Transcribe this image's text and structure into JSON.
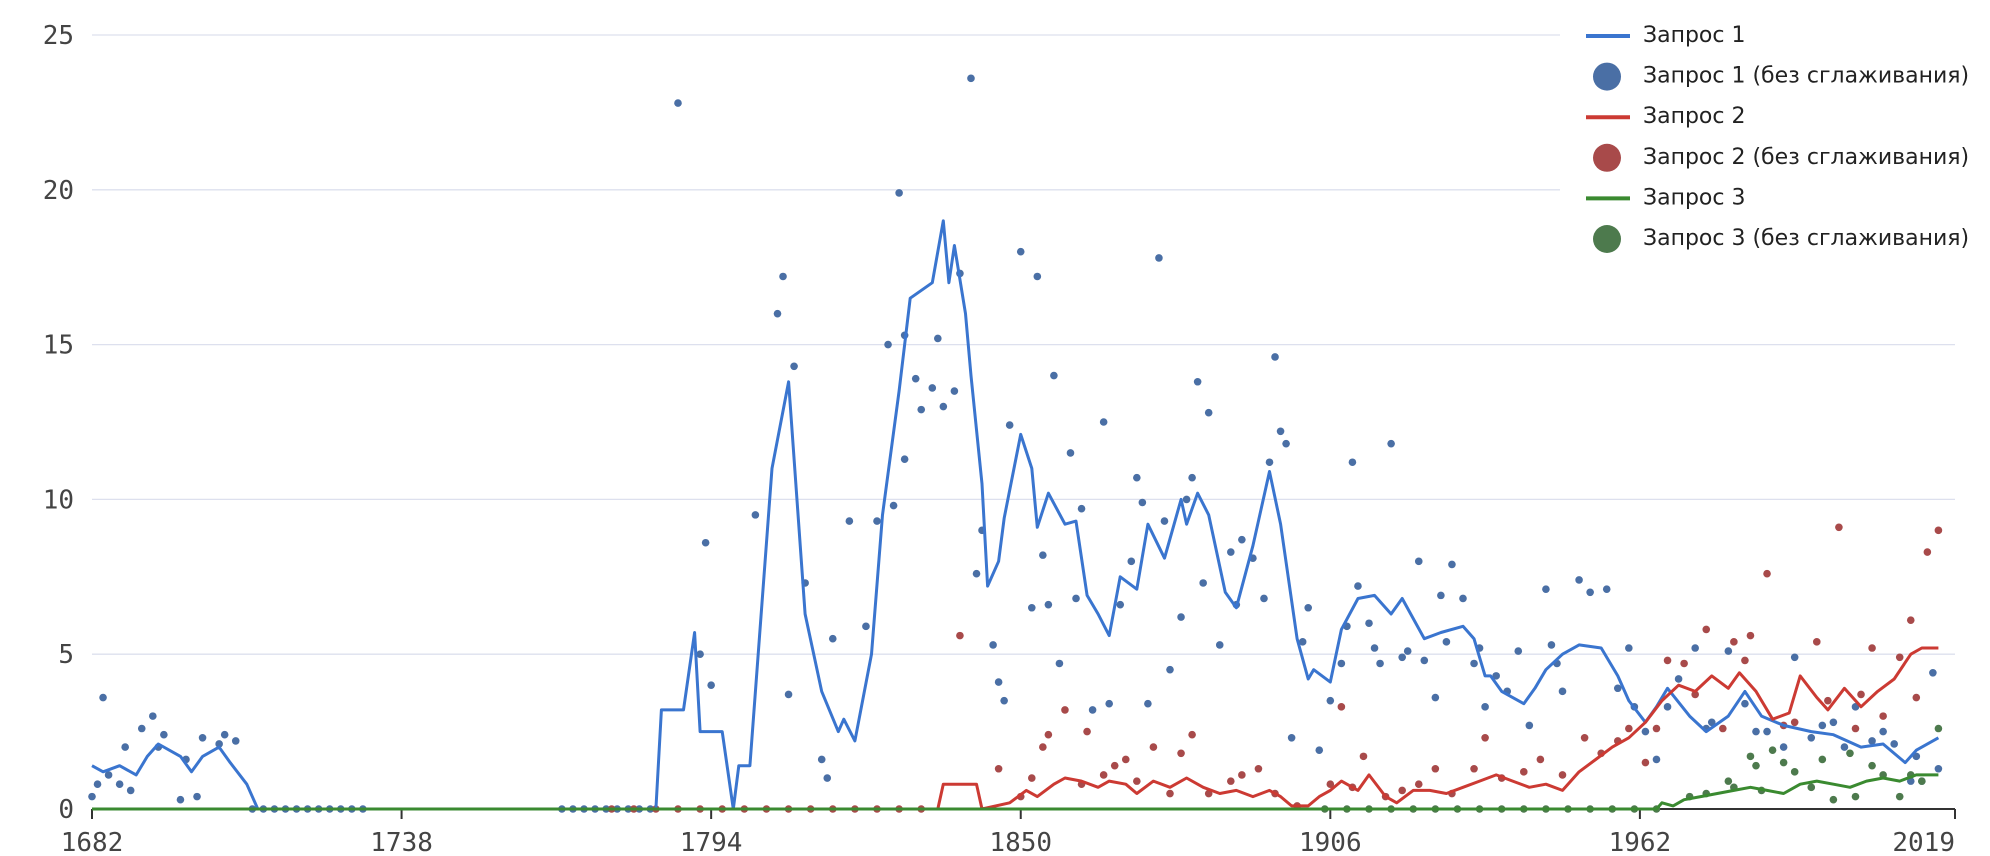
{
  "chart_data": {
    "type": "line",
    "xlim": [
      1682,
      2019
    ],
    "xticks": [
      1682,
      1738,
      1794,
      1850,
      1906,
      1962,
      2019
    ],
    "ylim": [
      0,
      25
    ],
    "yticks": [
      0,
      5,
      10,
      15,
      20,
      25
    ],
    "grid": true,
    "legend": "top-right",
    "series": [
      {
        "name": "Запрос 1",
        "type": "line",
        "color": "#3a75cf",
        "x": [
          1682,
          1684,
          1687,
          1690,
          1692,
          1694,
          1698,
          1700,
          1702,
          1705,
          1707,
          1710,
          1712,
          1784,
          1785,
          1789,
          1791,
          1792,
          1796,
          1798,
          1799,
          1801,
          1805,
          1808,
          1811,
          1814,
          1817,
          1818,
          1820,
          1823,
          1825,
          1828,
          1830,
          1834,
          1836,
          1837,
          1838,
          1840,
          1841,
          1843,
          1844,
          1846,
          1847,
          1850,
          1852,
          1853,
          1855,
          1858,
          1860,
          1862,
          1864,
          1866,
          1868,
          1871,
          1873,
          1876,
          1879,
          1880,
          1882,
          1884,
          1887,
          1889,
          1892,
          1895,
          1897,
          1900,
          1902,
          1903,
          1906,
          1908,
          1911,
          1914,
          1917,
          1919,
          1923,
          1926,
          1930,
          1932,
          1934,
          1935,
          1937,
          1941,
          1943,
          1945,
          1948,
          1951,
          1955,
          1958,
          1960,
          1963,
          1965,
          1967,
          1971,
          1974,
          1978,
          1981,
          1984,
          1988,
          1993,
          1997,
          2002,
          2006,
          2010,
          2012,
          2016
        ],
        "values": [
          1.4,
          1.2,
          1.4,
          1.1,
          1.7,
          2.1,
          1.7,
          1.2,
          1.7,
          2.0,
          1.5,
          0.8,
          0,
          0,
          3.2,
          3.2,
          5.7,
          2.5,
          2.5,
          0,
          1.4,
          1.4,
          11,
          13.8,
          6.3,
          3.8,
          2.5,
          2.9,
          2.2,
          5,
          9.5,
          13.5,
          16.5,
          17,
          19,
          17,
          18.2,
          16,
          14,
          10.5,
          7.2,
          8,
          9.4,
          12.1,
          11,
          9.1,
          10.2,
          9.2,
          9.3,
          6.9,
          6.3,
          5.6,
          7.5,
          7.1,
          9.2,
          8.1,
          10,
          9.2,
          10.2,
          9.5,
          7,
          6.5,
          8.5,
          10.9,
          9.2,
          5.5,
          4.2,
          4.5,
          4.1,
          5.8,
          6.8,
          6.9,
          6.3,
          6.8,
          5.5,
          5.7,
          5.9,
          5.5,
          4.3,
          4.3,
          3.8,
          3.4,
          3.9,
          4.5,
          5,
          5.3,
          5.2,
          4.3,
          3.5,
          2.8,
          3.3,
          3.9,
          3,
          2.5,
          3,
          3.8,
          3,
          2.7,
          2.5,
          2.4,
          2,
          2.1,
          1.5,
          1.9,
          2.3
        ]
      },
      {
        "name": "Запрос 1 (без сглаживания)",
        "type": "scatter",
        "color": "#4a6fa5",
        "x": [
          1682,
          1683,
          1684,
          1685,
          1687,
          1688,
          1689,
          1691,
          1693,
          1694,
          1695,
          1698,
          1699,
          1701,
          1702,
          1705,
          1706,
          1708,
          1711,
          1713,
          1715,
          1717,
          1719,
          1721,
          1723,
          1725,
          1727,
          1729,
          1731,
          1767,
          1769,
          1771,
          1773,
          1775,
          1777,
          1779,
          1781,
          1783,
          1788,
          1792,
          1793,
          1794,
          1802,
          1806,
          1807,
          1808,
          1809,
          1811,
          1814,
          1815,
          1816,
          1819,
          1822,
          1824,
          1826,
          1827,
          1828,
          1829,
          1829,
          1831,
          1832,
          1834,
          1835,
          1836,
          1838,
          1839,
          1841,
          1842,
          1843,
          1845,
          1846,
          1847,
          1848,
          1850,
          1852,
          1853,
          1854,
          1855,
          1856,
          1857,
          1859,
          1860,
          1861,
          1863,
          1865,
          1866,
          1868,
          1870,
          1871,
          1872,
          1873,
          1875,
          1876,
          1877,
          1879,
          1880,
          1881,
          1882,
          1883,
          1884,
          1886,
          1888,
          1889,
          1890,
          1892,
          1894,
          1895,
          1896,
          1897,
          1898,
          1899,
          1901,
          1902,
          1904,
          1906,
          1908,
          1909,
          1910,
          1911,
          1913,
          1914,
          1915,
          1917,
          1919,
          1920,
          1922,
          1923,
          1925,
          1926,
          1927,
          1928,
          1930,
          1932,
          1933,
          1934,
          1936,
          1938,
          1940,
          1942,
          1945,
          1946,
          1947,
          1948,
          1951,
          1953,
          1956,
          1958,
          1960,
          1961,
          1963,
          1965,
          1967,
          1969,
          1972,
          1974,
          1975,
          1978,
          1981,
          1983,
          1985,
          1988,
          1990,
          1993,
          1995,
          1997,
          1999,
          2001,
          2004,
          2006,
          2008,
          2011,
          2012,
          2013,
          2015,
          2016
        ],
        "values": [
          0.4,
          0.8,
          3.6,
          1.1,
          0.8,
          2,
          0.6,
          2.6,
          3,
          2,
          2.4,
          0.3,
          1.6,
          0.4,
          2.3,
          2.1,
          2.4,
          2.2,
          0,
          0,
          0,
          0,
          0,
          0,
          0,
          0,
          0,
          0,
          0,
          0,
          0,
          0,
          0,
          0,
          0,
          0,
          0,
          0,
          22.8,
          5,
          8.6,
          4,
          9.5,
          16,
          17.2,
          3.7,
          14.3,
          7.3,
          1.6,
          1,
          5.5,
          9.3,
          5.9,
          9.3,
          15,
          9.8,
          19.9,
          15.3,
          11.3,
          13.9,
          12.9,
          13.6,
          15.2,
          13,
          13.5,
          17.3,
          23.6,
          7.6,
          9,
          5.3,
          4.1,
          3.5,
          12.4,
          18,
          6.5,
          17.2,
          8.2,
          6.6,
          14,
          4.7,
          11.5,
          6.8,
          9.7,
          3.2,
          12.5,
          3.4,
          6.6,
          8,
          10.7,
          9.9,
          3.4,
          17.8,
          9.3,
          4.5,
          6.2,
          10,
          10.7,
          13.8,
          7.3,
          12.8,
          5.3,
          8.3,
          6.6,
          8.7,
          8.1,
          6.8,
          11.2,
          14.6,
          12.2,
          11.8,
          2.3,
          5.4,
          6.5,
          1.9,
          3.5,
          4.7,
          5.9,
          11.2,
          7.2,
          6,
          5.2,
          4.7,
          11.8,
          4.9,
          5.1,
          8,
          4.8,
          3.6,
          6.9,
          5.4,
          7.9,
          6.8,
          4.7,
          5.2,
          3.3,
          4.3,
          3.8,
          5.1,
          2.7,
          7.1,
          5.3,
          4.7,
          3.8,
          7.4,
          7,
          7.1,
          3.9,
          5.2,
          3.3,
          2.5,
          1.6,
          3.3,
          4.2,
          5.2,
          2.6,
          2.8,
          5.1,
          3.4,
          2.5,
          2.5,
          2,
          4.9,
          2.3,
          2.7,
          2.8,
          2,
          3.3,
          2.2,
          2.5,
          2.1,
          0.9,
          1.7,
          0.9,
          4.4,
          1.3
        ]
      },
      {
        "name": "Запрос 2",
        "type": "line",
        "color": "#cc3a33",
        "x": [
          1776,
          1835,
          1836,
          1842,
          1843,
          1848,
          1851,
          1853,
          1856,
          1858,
          1861,
          1864,
          1866,
          1869,
          1871,
          1874,
          1877,
          1880,
          1883,
          1886,
          1889,
          1892,
          1895,
          1897,
          1899,
          1902,
          1904,
          1906,
          1908,
          1911,
          1913,
          1916,
          1918,
          1921,
          1924,
          1927,
          1930,
          1933,
          1936,
          1939,
          1942,
          1945,
          1948,
          1951,
          1954,
          1957,
          1960,
          1963,
          1966,
          1969,
          1972,
          1975,
          1978,
          1980,
          1983,
          1986,
          1989,
          1991,
          1994,
          1996,
          1999,
          2002,
          2005,
          2008,
          2011,
          2013,
          2016
        ],
        "values": [
          0,
          0,
          0.8,
          0.8,
          0,
          0.2,
          0.6,
          0.4,
          0.8,
          1,
          0.9,
          0.7,
          0.9,
          0.8,
          0.5,
          0.9,
          0.7,
          1,
          0.7,
          0.5,
          0.6,
          0.4,
          0.6,
          0.4,
          0.1,
          0.1,
          0.4,
          0.6,
          0.9,
          0.6,
          1.1,
          0.4,
          0.2,
          0.6,
          0.6,
          0.5,
          0.7,
          0.9,
          1.1,
          0.9,
          0.7,
          0.8,
          0.6,
          1.2,
          1.6,
          2,
          2.3,
          2.8,
          3.5,
          4,
          3.8,
          4.3,
          3.9,
          4.4,
          3.8,
          2.9,
          3.1,
          4.3,
          3.6,
          3.2,
          3.9,
          3.3,
          3.8,
          4.2,
          5,
          5.2,
          5.2
        ]
      },
      {
        "name": "Запрос 2 (без сглаживания)",
        "type": "scatter",
        "color": "#a84a4a",
        "x": [
          1776,
          1780,
          1784,
          1788,
          1792,
          1796,
          1800,
          1804,
          1808,
          1812,
          1816,
          1820,
          1824,
          1828,
          1832,
          1839,
          1846,
          1850,
          1852,
          1854,
          1855,
          1858,
          1861,
          1862,
          1865,
          1867,
          1869,
          1871,
          1874,
          1877,
          1879,
          1881,
          1884,
          1888,
          1890,
          1893,
          1896,
          1900,
          1906,
          1908,
          1910,
          1912,
          1916,
          1919,
          1922,
          1925,
          1928,
          1932,
          1934,
          1937,
          1941,
          1944,
          1948,
          1952,
          1955,
          1958,
          1960,
          1963,
          1965,
          1967,
          1970,
          1972,
          1974,
          1977,
          1979,
          1981,
          1982,
          1985,
          1988,
          1990,
          1994,
          1996,
          1998,
          2001,
          2002,
          2004,
          2006,
          2009,
          2011,
          2012,
          2014,
          2016
        ],
        "values": [
          0,
          0,
          0,
          0,
          0,
          0,
          0,
          0,
          0,
          0,
          0,
          0,
          0,
          0,
          0,
          5.6,
          1.3,
          0.4,
          1,
          2,
          2.4,
          3.2,
          0.8,
          2.5,
          1.1,
          1.4,
          1.6,
          0.9,
          2,
          0.5,
          1.8,
          2.4,
          0.5,
          0.9,
          1.1,
          1.3,
          0.5,
          0.1,
          0.8,
          3.3,
          0.7,
          1.7,
          0.4,
          0.6,
          0.8,
          1.3,
          0.5,
          1.3,
          2.3,
          1,
          1.2,
          1.6,
          1.1,
          2.3,
          1.8,
          2.2,
          2.6,
          1.5,
          2.6,
          4.8,
          4.7,
          3.7,
          5.8,
          2.6,
          5.4,
          4.8,
          5.6,
          7.6,
          2.7,
          2.8,
          5.4,
          3.5,
          9.1,
          2.6,
          3.7,
          5.2,
          3,
          4.9,
          6.1,
          3.6,
          8.3,
          9
        ]
      },
      {
        "name": "Запрос 3",
        "type": "line",
        "color": "#3a8a30",
        "x": [
          1682,
          1965,
          1966,
          1968,
          1970,
          1973,
          1976,
          1979,
          1982,
          1985,
          1988,
          1991,
          1994,
          1997,
          2000,
          2003,
          2006,
          2009,
          2012,
          2016
        ],
        "values": [
          0,
          0,
          0.2,
          0.1,
          0.3,
          0.4,
          0.5,
          0.6,
          0.7,
          0.6,
          0.5,
          0.8,
          0.9,
          0.8,
          0.7,
          0.9,
          1,
          0.9,
          1.1,
          1.1
        ]
      },
      {
        "name": "Запрос 3 (без сглаживания)",
        "type": "scatter",
        "color": "#4d7a4d",
        "x": [
          1905,
          1909,
          1913,
          1917,
          1921,
          1925,
          1929,
          1933,
          1937,
          1941,
          1945,
          1949,
          1953,
          1957,
          1961,
          1965,
          1971,
          1974,
          1978,
          1979,
          1982,
          1983,
          1984,
          1986,
          1988,
          1990,
          1993,
          1995,
          1997,
          2000,
          2001,
          2004,
          2006,
          2009,
          2011,
          2013,
          2016
        ],
        "values": [
          0,
          0,
          0,
          0,
          0,
          0,
          0,
          0,
          0,
          0,
          0,
          0,
          0,
          0,
          0,
          0,
          0.4,
          0.5,
          0.9,
          0.7,
          1.7,
          1.4,
          0.6,
          1.9,
          1.5,
          1.2,
          0.7,
          1.6,
          0.3,
          1.8,
          0.4,
          1.4,
          1.1,
          0.4,
          1.1,
          0.9,
          2.6
        ]
      }
    ]
  }
}
